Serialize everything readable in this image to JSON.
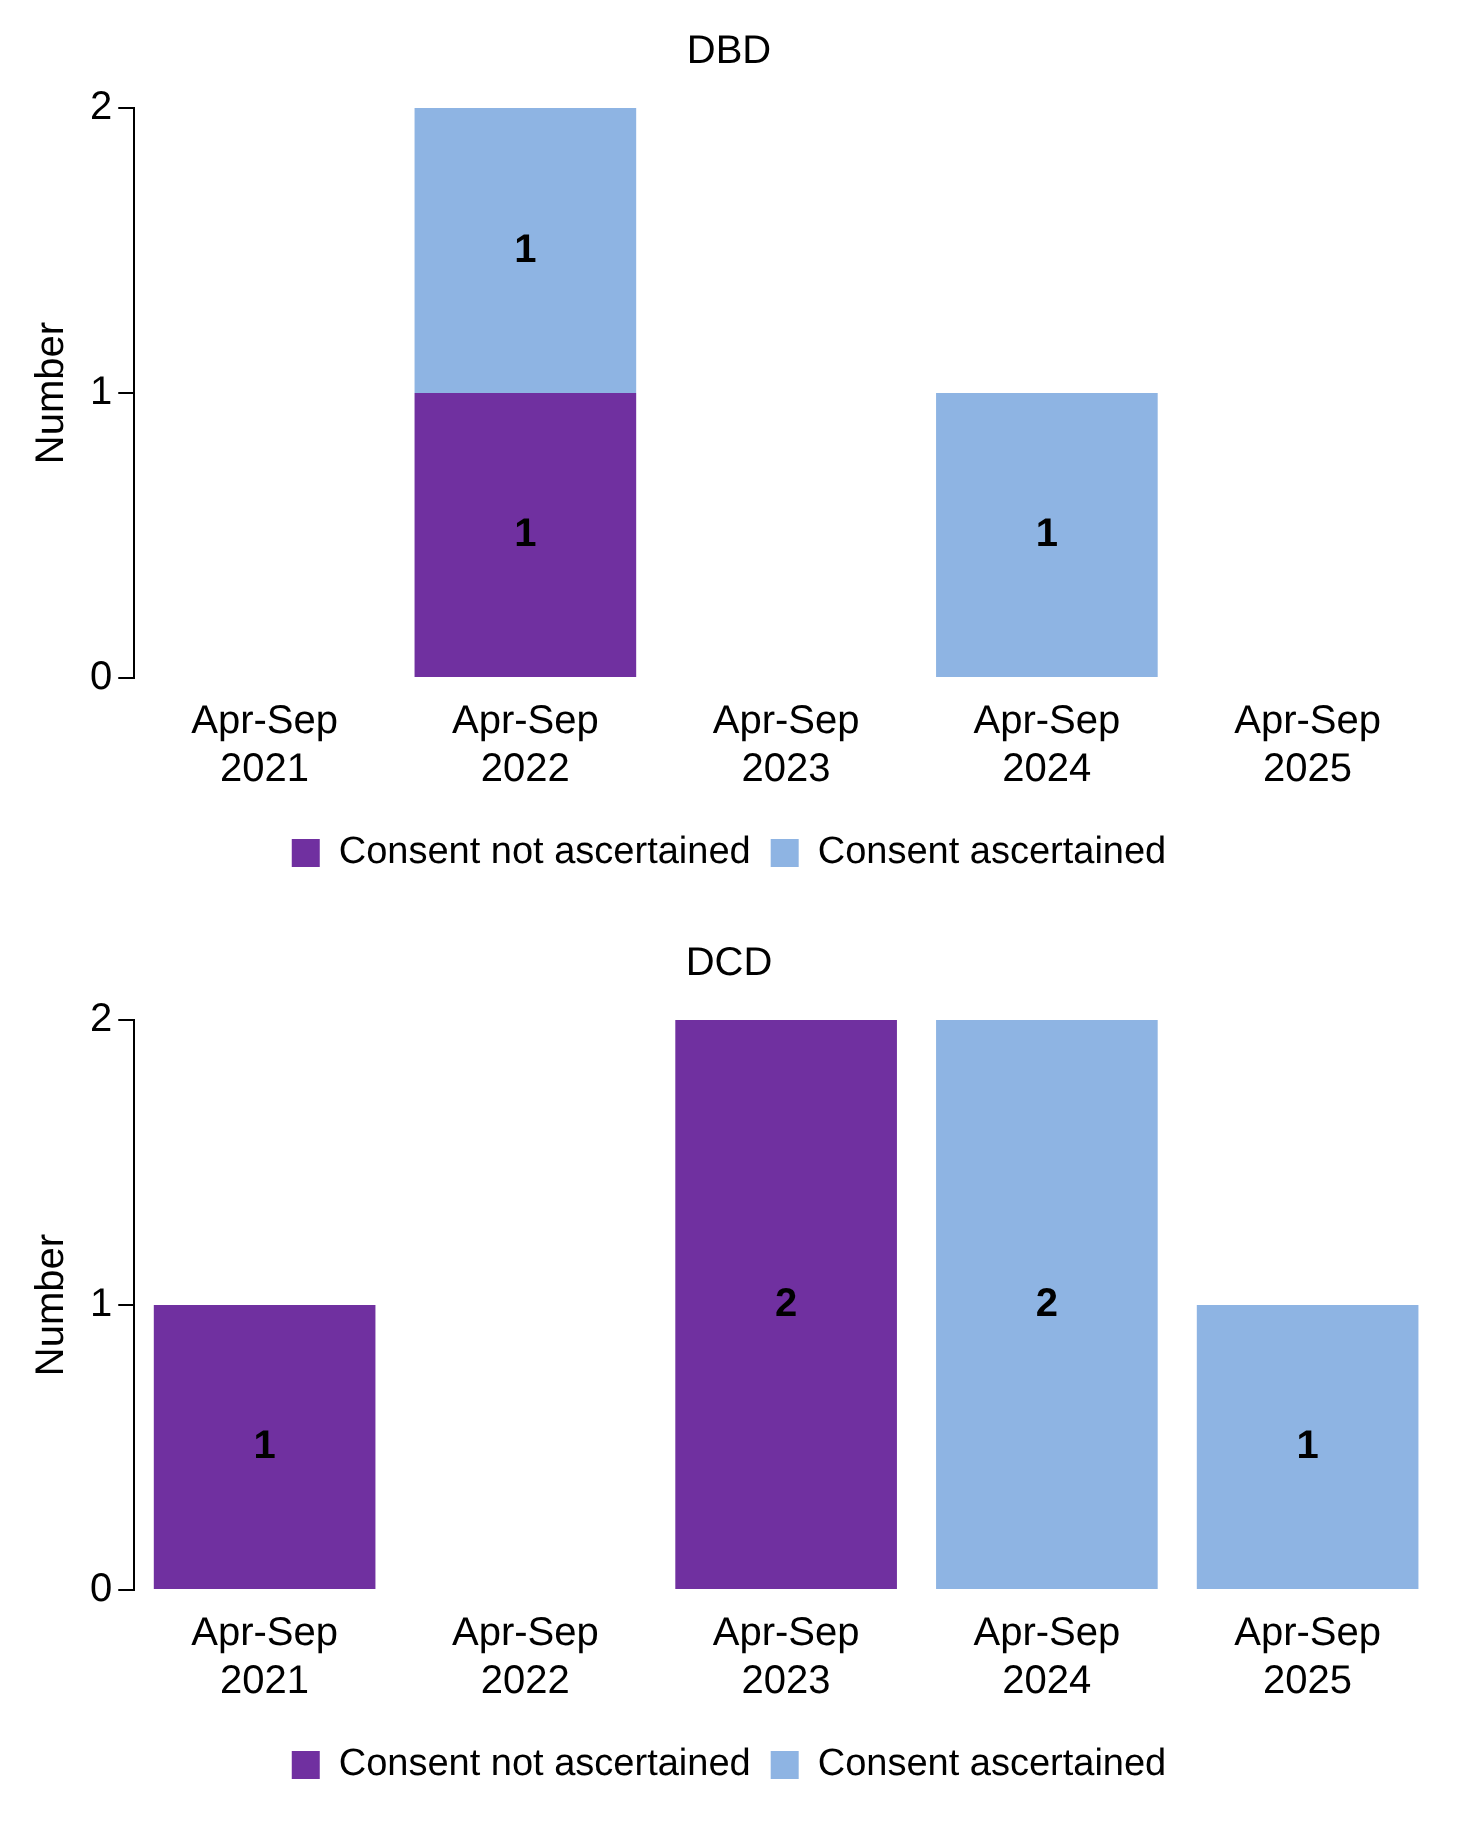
{
  "chart_data": [
    {
      "type": "bar",
      "title": "DBD",
      "ylabel": "Number",
      "categories": [
        "Apr-Sep 2021",
        "Apr-Sep 2022",
        "Apr-Sep 2023",
        "Apr-Sep 2024",
        "Apr-Sep 2025"
      ],
      "stacked": true,
      "ylim": [
        0,
        2
      ],
      "yticks": [
        0,
        1,
        2
      ],
      "grid": false,
      "legend": "bottom",
      "data_labels": true,
      "series": [
        {
          "name": "Consent not ascertained",
          "color": "#7030a0",
          "values": [
            null,
            1,
            null,
            null,
            null
          ]
        },
        {
          "name": "Consent ascertained",
          "color": "#8eb4e3",
          "values": [
            null,
            1,
            null,
            1,
            null
          ]
        }
      ]
    },
    {
      "type": "bar",
      "title": "DCD",
      "ylabel": "Number",
      "categories": [
        "Apr-Sep 2021",
        "Apr-Sep 2022",
        "Apr-Sep 2023",
        "Apr-Sep 2024",
        "Apr-Sep 2025"
      ],
      "stacked": true,
      "ylim": [
        0,
        2
      ],
      "yticks": [
        0,
        1,
        2
      ],
      "grid": false,
      "legend": "bottom",
      "data_labels": true,
      "series": [
        {
          "name": "Consent not ascertained",
          "color": "#7030a0",
          "values": [
            1,
            null,
            2,
            null,
            null
          ]
        },
        {
          "name": "Consent ascertained",
          "color": "#8eb4e3",
          "values": [
            null,
            null,
            null,
            2,
            1
          ]
        }
      ]
    }
  ]
}
